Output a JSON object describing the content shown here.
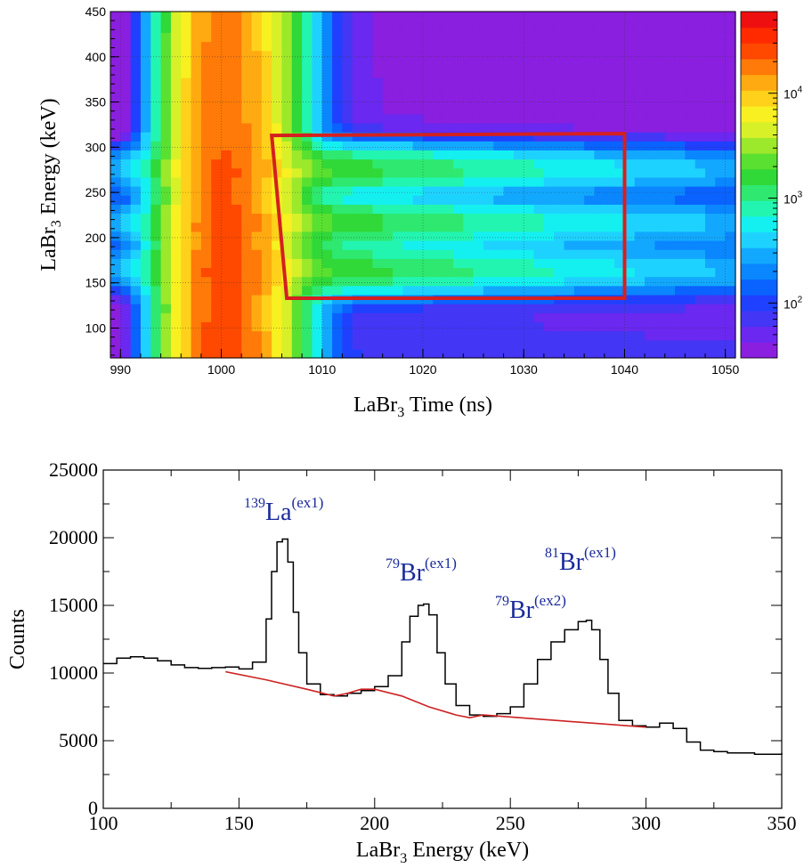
{
  "chart_data": [
    {
      "type": "heatmap",
      "xlabel": {
        "base": "LaBr",
        "sub": "3",
        "rest": " Time (ns)"
      },
      "ylabel": {
        "base": "LaBr",
        "sub": "3",
        "rest": " Energy (keV)"
      },
      "xlim": [
        989,
        1051
      ],
      "ylim": [
        67,
        450
      ],
      "xticks": [
        "990",
        "1000",
        "1010",
        "1020",
        "1030",
        "1040",
        "1050"
      ],
      "yticks": [
        "100",
        "150",
        "200",
        "250",
        "300",
        "350",
        "400",
        "450"
      ],
      "grid": true,
      "colorbar": {
        "scale": "log",
        "range": [
          30,
          60000
        ],
        "ticks": [
          {
            "base": "10",
            "exp": "2",
            "value": 100
          },
          {
            "base": "10",
            "exp": "3",
            "value": 1000
          },
          {
            "base": "10",
            "exp": "4",
            "value": 10000
          }
        ],
        "colors": [
          "#8a1fe0",
          "#6a28f0",
          "#4436f5",
          "#2040ff",
          "#0a62ff",
          "#0a86ff",
          "#12a8ff",
          "#1ed2ff",
          "#14f0f0",
          "#22f5b0",
          "#2ee870",
          "#30d838",
          "#5ae030",
          "#9ce82a",
          "#d8f028",
          "#f8f020",
          "#ffd11a",
          "#ffaa10",
          "#ff7a08",
          "#ff4800",
          "#ff2a00",
          "#ee1010"
        ]
      },
      "peaks_keV": [
        165,
        217,
        276
      ],
      "peak_time_ns": 1000,
      "gate": {
        "color": "#d42020",
        "points": [
          [
            1005,
            313
          ],
          [
            1040,
            315
          ],
          [
            1040,
            133
          ],
          [
            1006.5,
            133
          ]
        ]
      }
    },
    {
      "type": "line",
      "xlabel": {
        "base": "LaBr",
        "sub": "3",
        "rest": " Energy (keV)"
      },
      "ylabel": "Counts",
      "xlim": [
        100,
        350
      ],
      "ylim": [
        0,
        25000
      ],
      "xticks": [
        "100",
        "150",
        "200",
        "250",
        "300",
        "350"
      ],
      "yticks": [
        "0",
        "5000",
        "10000",
        "15000",
        "20000",
        "25000"
      ],
      "series": [
        {
          "style": "step",
          "color": "#000000",
          "x": [
            100,
            105,
            110,
            115,
            120,
            125,
            130,
            135,
            140,
            145,
            150,
            155,
            160,
            162,
            164,
            166,
            168,
            170,
            172,
            175,
            180,
            185,
            190,
            195,
            200,
            205,
            210,
            213,
            216,
            218,
            220,
            223,
            226,
            230,
            235,
            240,
            245,
            250,
            255,
            260,
            265,
            270,
            275,
            278,
            280,
            283,
            286,
            290,
            295,
            300,
            305,
            310,
            315,
            320,
            325,
            330,
            335,
            340,
            345,
            350
          ],
          "y": [
            10700,
            11100,
            11200,
            11100,
            10900,
            10600,
            10400,
            10350,
            10400,
            10450,
            10300,
            10800,
            14000,
            17500,
            19700,
            19900,
            18200,
            14500,
            11500,
            9200,
            8400,
            8300,
            8500,
            8700,
            9000,
            9800,
            12300,
            14200,
            15000,
            15100,
            14300,
            11500,
            9200,
            7600,
            6900,
            6800,
            7000,
            7500,
            9200,
            11000,
            12300,
            13200,
            13800,
            13900,
            13200,
            11000,
            8500,
            6500,
            6100,
            6000,
            6300,
            5900,
            4900,
            4300,
            4200,
            4100,
            4100,
            4000,
            4000,
            4100
          ]
        },
        {
          "style": "line",
          "color": "#cc2222",
          "x": [
            145,
            160,
            175,
            185,
            190,
            195,
            200,
            210,
            220,
            230,
            235,
            240,
            260,
            280,
            300
          ],
          "y": [
            10100,
            9500,
            8800,
            8300,
            8500,
            8800,
            8800,
            8300,
            7500,
            6900,
            6700,
            6900,
            6600,
            6300,
            6000
          ]
        }
      ],
      "annotations": [
        {
          "mass": "139",
          "element": "La",
          "state": "(ex1)"
        },
        {
          "mass": "79",
          "element": "Br",
          "state": "(ex1)"
        },
        {
          "mass": "81",
          "element": "Br",
          "state": "(ex1)"
        },
        {
          "mass": "79",
          "element": "Br",
          "state": "(ex2)"
        }
      ]
    }
  ]
}
